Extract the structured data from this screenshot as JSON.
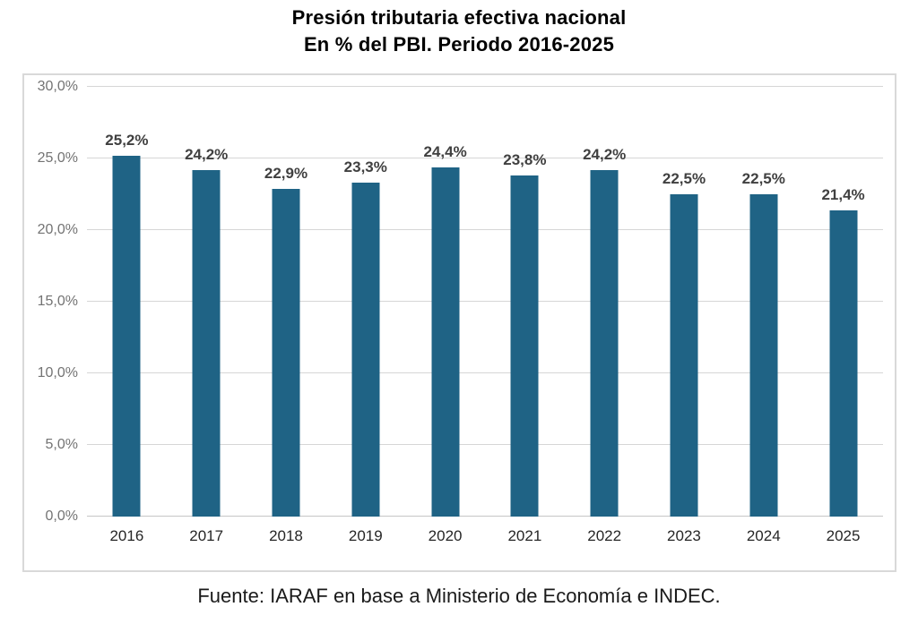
{
  "title": {
    "line1": "Presión tributaria efectiva nacional",
    "line2": "En % del PBI. Periodo 2016-2025"
  },
  "source": "Fuente: IARAF en base a Ministerio de Economía e INDEC.",
  "chart_data": {
    "type": "bar",
    "title": "Presión tributaria efectiva nacional",
    "subtitle": "En % del PBI. Periodo 2016-2025",
    "categories": [
      "2016",
      "2017",
      "2018",
      "2019",
      "2020",
      "2021",
      "2022",
      "2023",
      "2024",
      "2025"
    ],
    "values": [
      25.2,
      24.2,
      22.9,
      23.3,
      24.4,
      23.8,
      24.2,
      22.5,
      22.5,
      21.4
    ],
    "value_labels": [
      "25,2%",
      "24,2%",
      "22,9%",
      "23,3%",
      "24,4%",
      "23,8%",
      "24,2%",
      "22,5%",
      "22,5%",
      "21,4%"
    ],
    "xlabel": "",
    "ylabel": "",
    "ylim": [
      0,
      30
    ],
    "y_tick_values": [
      0,
      5,
      10,
      15,
      20,
      25,
      30
    ],
    "y_tick_labels": [
      "0,0%",
      "5,0%",
      "10,0%",
      "15,0%",
      "20,0%",
      "25,0%",
      "30,0%"
    ],
    "grid": true,
    "legend": false,
    "colors": {
      "bar": "#1f6385",
      "gridline": "#d6d6d6",
      "chart_border": "#d9d9d9",
      "y_tick_text": "#737373",
      "x_tick_text": "#262626",
      "value_label_text": "#404040",
      "title_text": "#000000"
    }
  }
}
